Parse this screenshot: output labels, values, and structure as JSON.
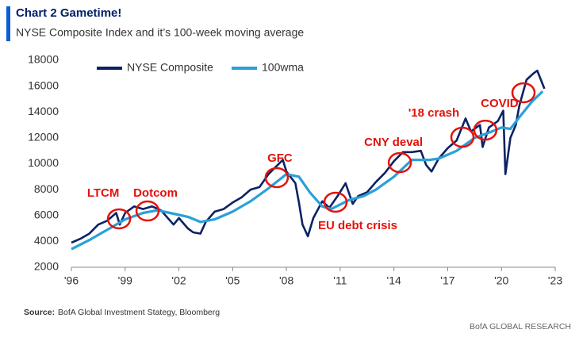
{
  "chart_data": {
    "type": "line",
    "title": "Chart 2 Gametime!",
    "subtitle": "NYSE Composite Index  and it’s 100-week moving average",
    "source_label": "Source:",
    "source": "BofA Global Investment Stategy, Bloomberg",
    "brand": "BofA GLOBAL RESEARCH",
    "xlim": [
      1996,
      2023
    ],
    "xticks": [
      {
        "value": 1996,
        "label": "'96"
      },
      {
        "value": 1999,
        "label": "'99"
      },
      {
        "value": 2002,
        "label": "'02"
      },
      {
        "value": 2005,
        "label": "'05"
      },
      {
        "value": 2008,
        "label": "'08"
      },
      {
        "value": 2011,
        "label": "'11"
      },
      {
        "value": 2014,
        "label": "'14"
      },
      {
        "value": 2017,
        "label": "'17"
      },
      {
        "value": 2020,
        "label": "'20"
      },
      {
        "value": 2023,
        "label": "'23"
      }
    ],
    "ylim": [
      2000,
      18000
    ],
    "yticks": [
      2000,
      4000,
      6000,
      8000,
      10000,
      12000,
      14000,
      16000,
      18000
    ],
    "series": [
      {
        "name": "NYSE Composite",
        "color": "#0b2265",
        "x": [
          1996.0,
          1996.5,
          1997.0,
          1997.5,
          1998.0,
          1998.5,
          1998.7,
          1999.0,
          1999.5,
          2000.0,
          2000.5,
          2001.0,
          2001.7,
          2002.0,
          2002.5,
          2002.8,
          2003.2,
          2003.5,
          2004.0,
          2004.5,
          2005.0,
          2005.5,
          2006.0,
          2006.5,
          2007.0,
          2007.8,
          2008.0,
          2008.5,
          2008.7,
          2008.9,
          2009.2,
          2009.5,
          2010.0,
          2010.4,
          2010.9,
          2011.3,
          2011.7,
          2012.0,
          2012.5,
          2013.0,
          2013.5,
          2014.0,
          2014.5,
          2015.0,
          2015.5,
          2015.8,
          2016.1,
          2016.5,
          2017.0,
          2017.5,
          2018.0,
          2018.3,
          2018.8,
          2018.95,
          2019.3,
          2019.8,
          2020.1,
          2020.22,
          2020.5,
          2020.8,
          2021.0,
          2021.4,
          2021.8,
          2022.0,
          2022.2,
          2022.4
        ],
        "values": [
          3900,
          4200,
          4600,
          5300,
          5600,
          6200,
          5300,
          6200,
          6700,
          6500,
          6700,
          6400,
          5300,
          5800,
          5000,
          4700,
          4600,
          5500,
          6300,
          6500,
          7000,
          7400,
          8000,
          8200,
          9200,
          10300,
          9400,
          8500,
          7000,
          5300,
          4400,
          5800,
          7100,
          6600,
          7600,
          8500,
          6900,
          7500,
          7800,
          8600,
          9300,
          10200,
          10900,
          10900,
          11000,
          9900,
          9400,
          10400,
          11200,
          11800,
          13500,
          12500,
          13000,
          11300,
          12800,
          13300,
          14100,
          9200,
          12000,
          13000,
          14500,
          16500,
          17000,
          17200,
          16500,
          15800
        ]
      },
      {
        "name": "100wma",
        "color": "#2aa0d8",
        "x": [
          1996.0,
          1997.0,
          1998.0,
          1999.0,
          2000.0,
          2000.8,
          2001.5,
          2002.5,
          2003.2,
          2004.0,
          2005.0,
          2006.0,
          2007.0,
          2008.0,
          2008.7,
          2009.3,
          2010.0,
          2010.5,
          2011.5,
          2012.3,
          2013.0,
          2014.0,
          2015.0,
          2016.0,
          2016.5,
          2017.5,
          2018.5,
          2019.3,
          2020.0,
          2020.5,
          2021.0,
          2021.7,
          2022.3
        ],
        "values": [
          3400,
          4100,
          4900,
          5700,
          6200,
          6400,
          6200,
          5900,
          5500,
          5700,
          6300,
          7100,
          8100,
          9200,
          9000,
          7800,
          6700,
          6500,
          7200,
          7500,
          8000,
          9000,
          10300,
          10300,
          10400,
          11000,
          12000,
          12400,
          12800,
          12700,
          13600,
          14800,
          15600
        ]
      }
    ],
    "annotations": [
      {
        "text": "LTCM",
        "x": 1998.66,
        "y": 5740
      },
      {
        "text": "Dotcom",
        "x": 2000.25,
        "y": 6350
      },
      {
        "text": "GFC",
        "x": 2007.46,
        "y": 8930
      },
      {
        "text": "EU debt crisis",
        "x": 2010.74,
        "y": 7030
      },
      {
        "text": "CNY deval",
        "x": 2014.33,
        "y": 10090
      },
      {
        "text": "'18 crash",
        "x": 2017.82,
        "y": 12050
      },
      {
        "text": "COVID",
        "x": 2019.1,
        "y": 12600
      },
      {
        "x": 2021.23,
        "y": 15490
      }
    ]
  }
}
